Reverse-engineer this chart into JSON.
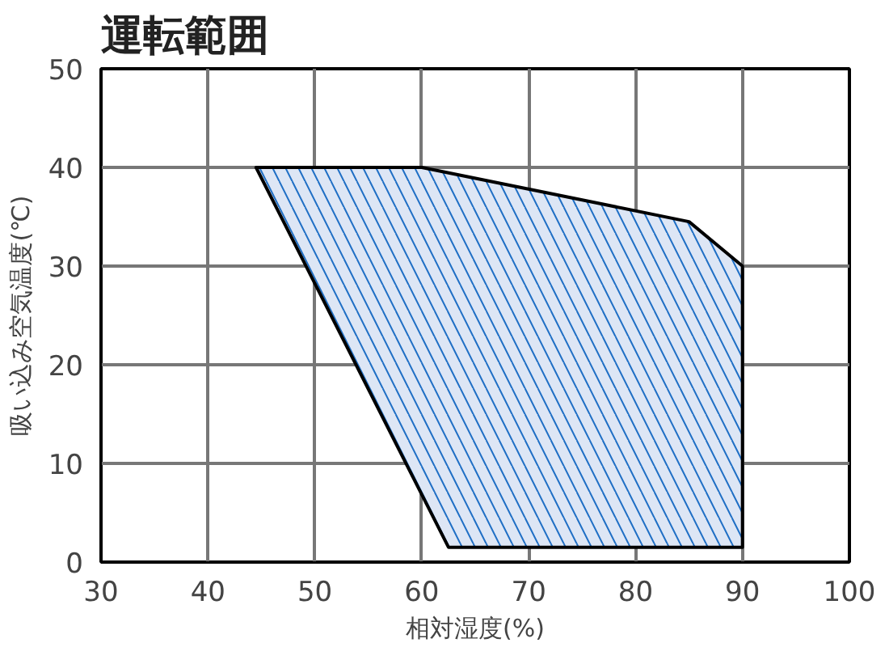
{
  "chart_data": {
    "type": "area",
    "title": "運転範囲",
    "xlabel": "相対湿度(%)",
    "ylabel": "吸い込み空気温度(℃)",
    "series": [
      {
        "color": "#dde6f5",
        "x": [
          44.5,
          60,
          85,
          90,
          90,
          62.5
        ],
        "values": [
          40,
          40,
          34.5,
          30,
          1.5,
          1.5
        ]
      }
    ],
    "xlim": [
      30,
      100
    ],
    "ylim": [
      0,
      50
    ],
    "xticks": [
      30,
      40,
      50,
      60,
      70,
      80,
      90,
      100
    ],
    "yticks": [
      0,
      10,
      20,
      30,
      40,
      50
    ],
    "grid": true
  }
}
